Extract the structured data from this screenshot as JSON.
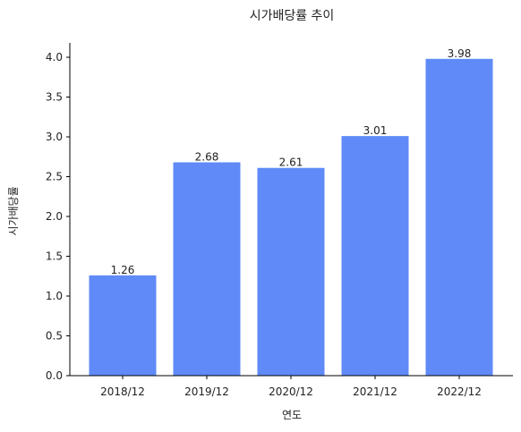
{
  "chart_data": {
    "type": "bar",
    "title": "시가배당률 추이",
    "xlabel": "연도",
    "ylabel": "시가배당률",
    "categories": [
      "2018/12",
      "2019/12",
      "2020/12",
      "2021/12",
      "2022/12"
    ],
    "values": [
      1.26,
      2.68,
      2.61,
      3.01,
      3.98
    ],
    "data_labels": [
      "1.26",
      "2.68",
      "2.61",
      "3.01",
      "3.98"
    ],
    "ylim": [
      0,
      4.18
    ],
    "yticks": [
      0.0,
      0.5,
      1.0,
      1.5,
      2.0,
      2.5,
      3.0,
      3.5,
      4.0
    ],
    "ytick_labels": [
      "0.0",
      "0.5",
      "1.0",
      "1.5",
      "2.0",
      "2.5",
      "3.0",
      "3.5",
      "4.0"
    ],
    "grid": false,
    "legend": "none",
    "colors": {
      "bar": "#5f8af7",
      "axis": "#000000",
      "text": "#222222"
    }
  }
}
